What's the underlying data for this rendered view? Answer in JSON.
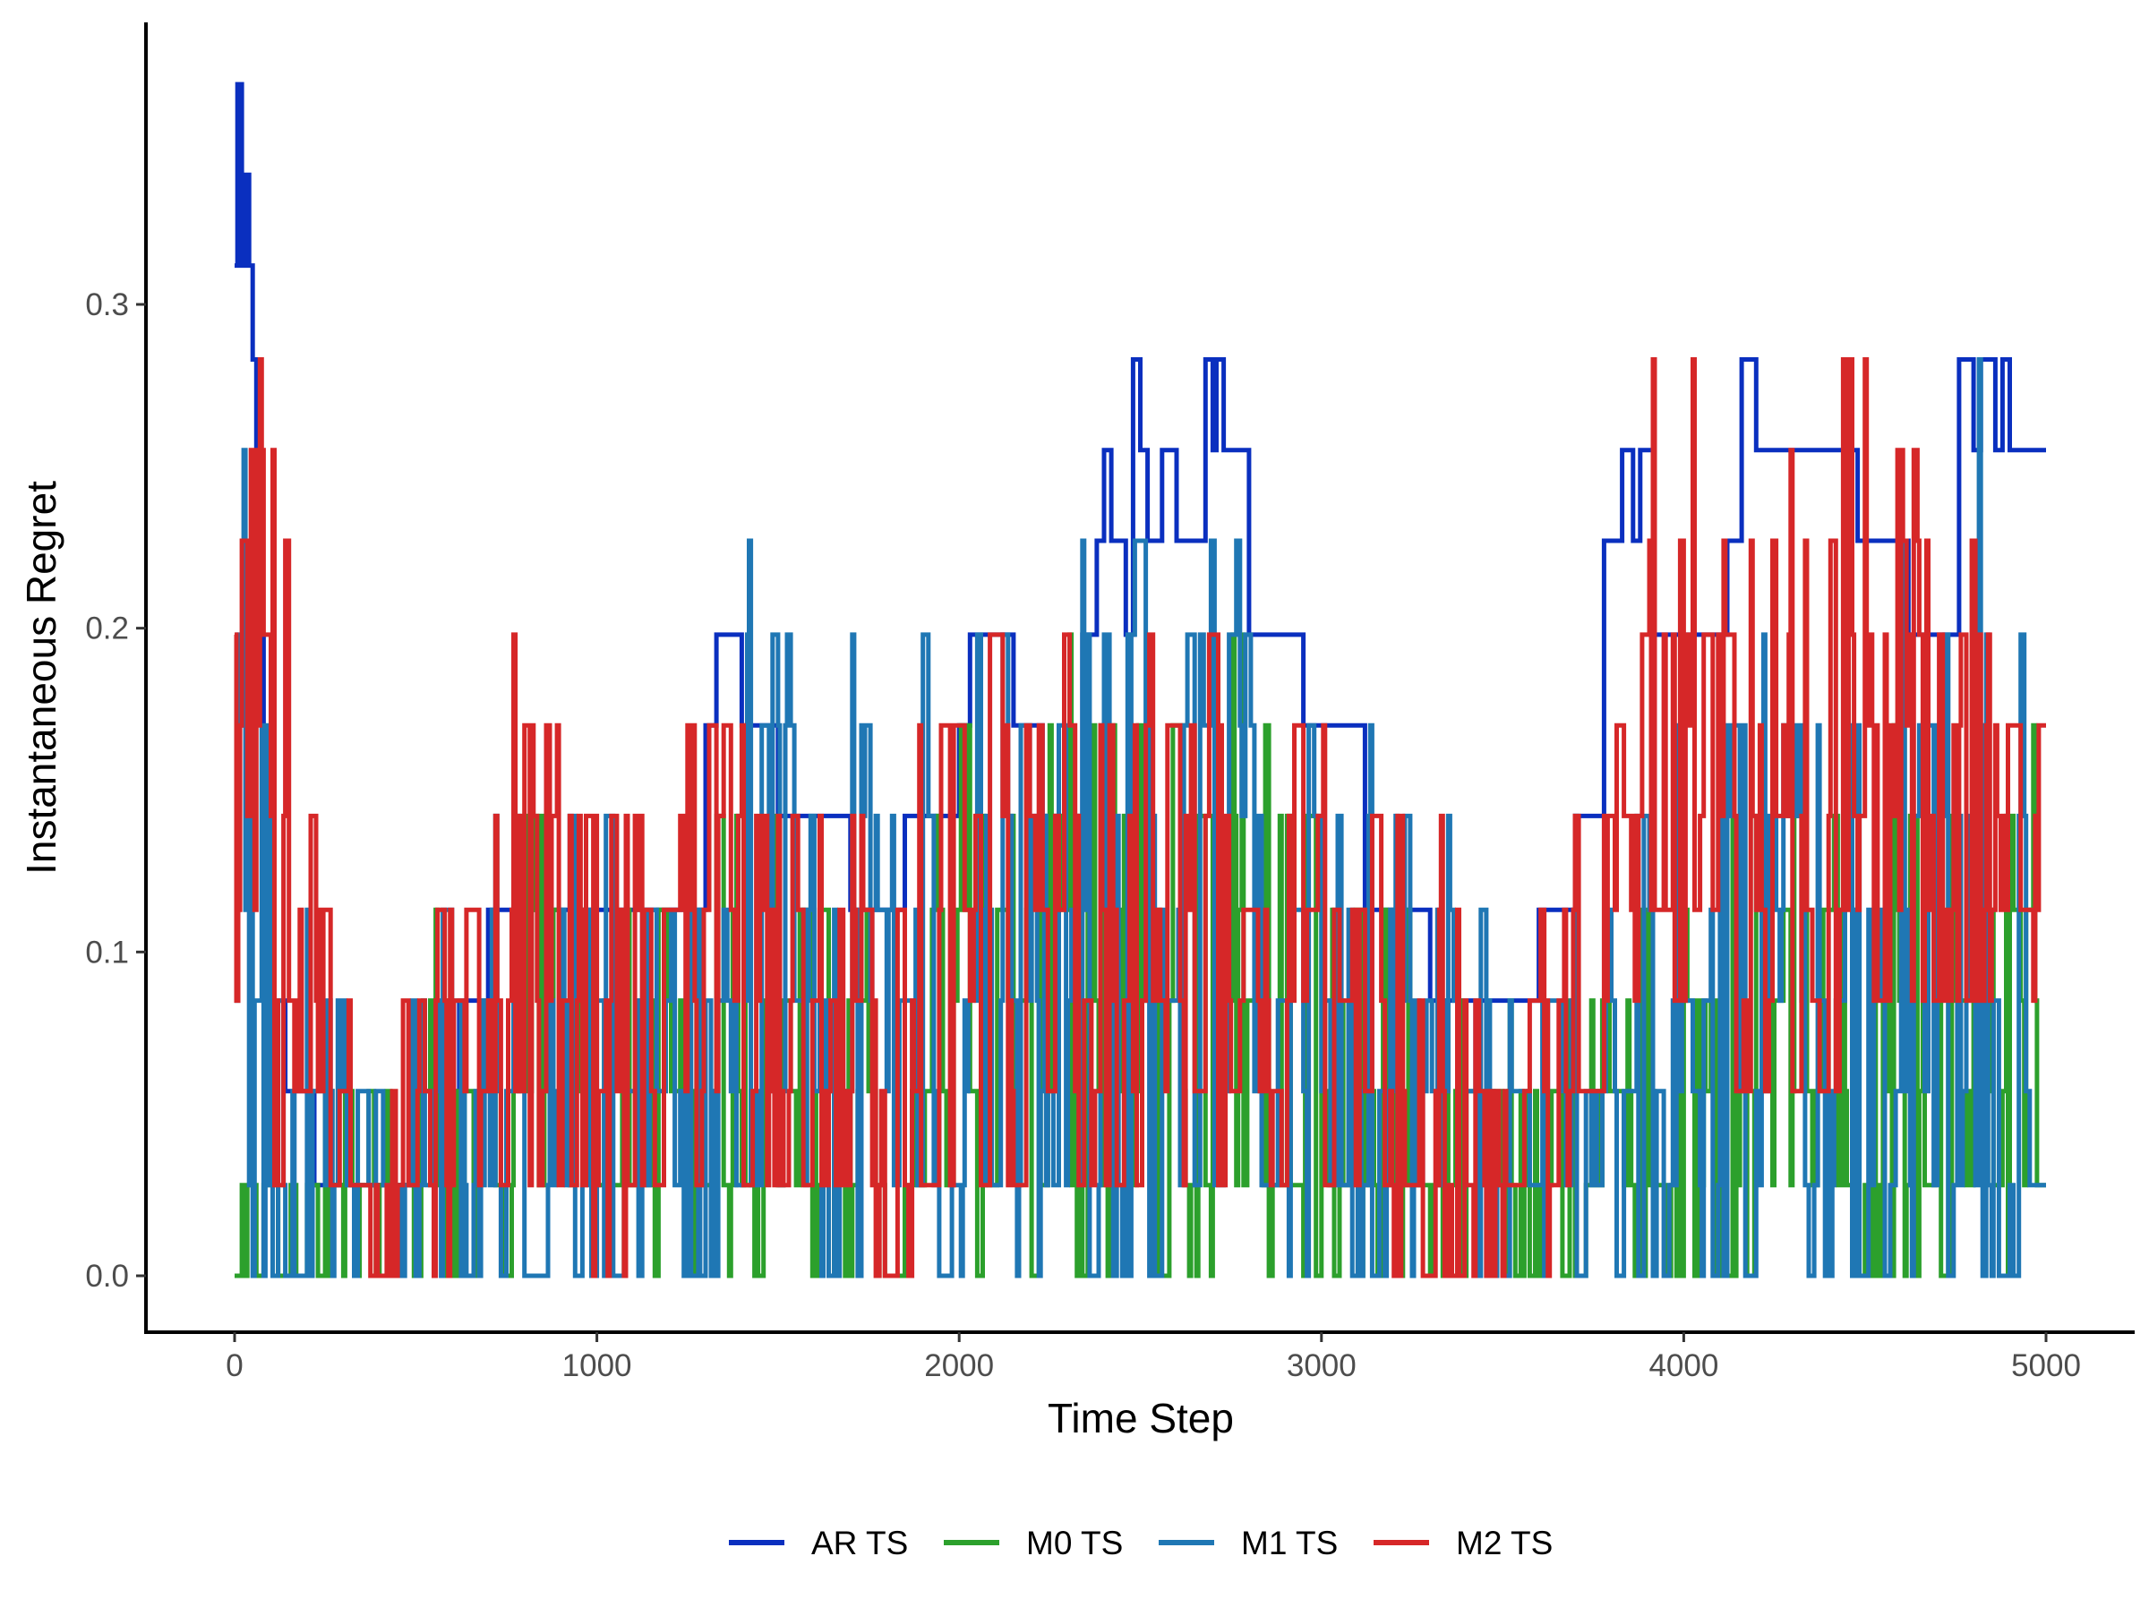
{
  "chart_data": {
    "type": "line",
    "title": "",
    "xlabel": "Time Step",
    "ylabel": "Instantaneous Regret",
    "xlim": [
      -250,
      5250
    ],
    "ylim": [
      -0.018,
      0.385
    ],
    "x_ticks": [
      {
        "value": 0,
        "label": "0"
      },
      {
        "value": 1000,
        "label": "1000"
      },
      {
        "value": 2000,
        "label": "2000"
      },
      {
        "value": 3000,
        "label": "3000"
      },
      {
        "value": 4000,
        "label": "4000"
      },
      {
        "value": 5000,
        "label": "5000"
      }
    ],
    "y_ticks": [
      {
        "value": 0.0,
        "label": "0.0"
      },
      {
        "value": 0.1,
        "label": "0.1"
      },
      {
        "value": 0.2,
        "label": "0.2"
      },
      {
        "value": 0.3,
        "label": "0.3"
      }
    ],
    "grid": false,
    "legend_position": "bottom",
    "levels": [
      0,
      0.028,
      0.057,
      0.085,
      0.113,
      0.142,
      0.17,
      0.198,
      0.227,
      0.255,
      0.283,
      0.312,
      0.34,
      0.368
    ],
    "series": [
      {
        "name": "AR TS",
        "color": "#0a2fbf",
        "style": "step",
        "points": [
          [
            0,
            0.312
          ],
          [
            8,
            0.368
          ],
          [
            20,
            0.312
          ],
          [
            30,
            0.34
          ],
          [
            40,
            0.312
          ],
          [
            50,
            0.283
          ],
          [
            60,
            0.255
          ],
          [
            70,
            0.198
          ],
          [
            80,
            0.142
          ],
          [
            90,
            0.113
          ],
          [
            110,
            0.085
          ],
          [
            140,
            0.057
          ],
          [
            180,
            0.057
          ],
          [
            220,
            0.028
          ],
          [
            300,
            0.028
          ],
          [
            400,
            0.028
          ],
          [
            500,
            0.057
          ],
          [
            620,
            0.085
          ],
          [
            700,
            0.113
          ],
          [
            900,
            0.113
          ],
          [
            1000,
            0.113
          ],
          [
            1200,
            0.113
          ],
          [
            1300,
            0.17
          ],
          [
            1330,
            0.198
          ],
          [
            1400,
            0.17
          ],
          [
            1500,
            0.142
          ],
          [
            1600,
            0.142
          ],
          [
            1700,
            0.113
          ],
          [
            1850,
            0.142
          ],
          [
            1900,
            0.142
          ],
          [
            2000,
            0.17
          ],
          [
            2030,
            0.198
          ],
          [
            2100,
            0.198
          ],
          [
            2150,
            0.17
          ],
          [
            2200,
            0.17
          ],
          [
            2230,
            0.142
          ],
          [
            2300,
            0.142
          ],
          [
            2340,
            0.198
          ],
          [
            2380,
            0.227
          ],
          [
            2400,
            0.255
          ],
          [
            2420,
            0.227
          ],
          [
            2460,
            0.198
          ],
          [
            2480,
            0.283
          ],
          [
            2500,
            0.255
          ],
          [
            2520,
            0.227
          ],
          [
            2560,
            0.255
          ],
          [
            2600,
            0.227
          ],
          [
            2680,
            0.283
          ],
          [
            2700,
            0.255
          ],
          [
            2710,
            0.283
          ],
          [
            2730,
            0.255
          ],
          [
            2800,
            0.198
          ],
          [
            2880,
            0.198
          ],
          [
            2950,
            0.17
          ],
          [
            3100,
            0.17
          ],
          [
            3120,
            0.113
          ],
          [
            3200,
            0.113
          ],
          [
            3300,
            0.085
          ],
          [
            3400,
            0.085
          ],
          [
            3500,
            0.085
          ],
          [
            3600,
            0.113
          ],
          [
            3700,
            0.142
          ],
          [
            3760,
            0.142
          ],
          [
            3780,
            0.227
          ],
          [
            3830,
            0.255
          ],
          [
            3860,
            0.227
          ],
          [
            3880,
            0.255
          ],
          [
            3920,
            0.198
          ],
          [
            4000,
            0.198
          ],
          [
            4080,
            0.198
          ],
          [
            4120,
            0.227
          ],
          [
            4160,
            0.283
          ],
          [
            4200,
            0.255
          ],
          [
            4300,
            0.255
          ],
          [
            4400,
            0.255
          ],
          [
            4480,
            0.227
          ],
          [
            4560,
            0.227
          ],
          [
            4620,
            0.198
          ],
          [
            4700,
            0.198
          ],
          [
            4760,
            0.283
          ],
          [
            4800,
            0.255
          ],
          [
            4820,
            0.283
          ],
          [
            4860,
            0.255
          ],
          [
            4880,
            0.283
          ],
          [
            4900,
            0.255
          ],
          [
            5000,
            0.255
          ]
        ]
      },
      {
        "name": "M0 TS",
        "color": "#2ca02c",
        "style": "noisy",
        "seed": 11,
        "points": [
          [
            0,
            0.0
          ],
          [
            200,
            0.0
          ],
          [
            400,
            0.0
          ],
          [
            600,
            0.0
          ],
          [
            800,
            0.0
          ],
          [
            1000,
            0.0
          ],
          [
            1200,
            0.0
          ],
          [
            1400,
            0.0
          ],
          [
            1600,
            0.0
          ],
          [
            1800,
            0.0
          ],
          [
            2000,
            0.0
          ],
          [
            2200,
            0.0
          ],
          [
            2400,
            0.0
          ],
          [
            2600,
            0.0
          ],
          [
            2800,
            0.0
          ],
          [
            3000,
            0.0
          ],
          [
            3200,
            0.0
          ],
          [
            3400,
            0.0
          ],
          [
            3600,
            0.0
          ],
          [
            3800,
            0.0
          ],
          [
            4000,
            0.0
          ],
          [
            4200,
            0.0
          ],
          [
            4400,
            0.0
          ],
          [
            4600,
            0.0
          ],
          [
            4800,
            0.0
          ],
          [
            5000,
            0.0
          ]
        ],
        "bounds": [
          [
            0,
            0.0,
            0.057
          ],
          [
            200,
            0.0,
            0.085
          ],
          [
            400,
            0.0,
            0.057
          ],
          [
            600,
            0.0,
            0.113
          ],
          [
            800,
            0.0,
            0.142
          ],
          [
            1000,
            0.0,
            0.113
          ],
          [
            1200,
            0.0,
            0.142
          ],
          [
            1400,
            0.0,
            0.17
          ],
          [
            1600,
            0.0,
            0.113
          ],
          [
            1800,
            0.0,
            0.113
          ],
          [
            2000,
            0.0,
            0.17
          ],
          [
            2200,
            0.0,
            0.17
          ],
          [
            2400,
            0.0,
            0.198
          ],
          [
            2600,
            0.0,
            0.198
          ],
          [
            2800,
            0.0,
            0.198
          ],
          [
            3000,
            0.0,
            0.142
          ],
          [
            3200,
            0.0,
            0.113
          ],
          [
            3400,
            0.0,
            0.085
          ],
          [
            3600,
            0.0,
            0.085
          ],
          [
            3800,
            0.0,
            0.113
          ],
          [
            4000,
            0.0,
            0.142
          ],
          [
            4200,
            0.0,
            0.142
          ],
          [
            4400,
            0.0,
            0.17
          ],
          [
            4600,
            0.0,
            0.17
          ],
          [
            4800,
            0.0,
            0.198
          ],
          [
            5000,
            0.0,
            0.198
          ]
        ]
      },
      {
        "name": "M1 TS",
        "color": "#1f77b4",
        "style": "noisy",
        "seed": 23,
        "points": [
          [
            0,
            0.0
          ],
          [
            200,
            0.0
          ],
          [
            400,
            0.0
          ],
          [
            600,
            0.0
          ],
          [
            800,
            0.0
          ],
          [
            1000,
            0.0
          ],
          [
            1200,
            0.0
          ],
          [
            1400,
            0.0
          ],
          [
            1600,
            0.0
          ],
          [
            1800,
            0.0
          ],
          [
            2000,
            0.0
          ],
          [
            2200,
            0.0
          ],
          [
            2400,
            0.0
          ],
          [
            2600,
            0.0
          ],
          [
            2800,
            0.0
          ],
          [
            3000,
            0.0
          ],
          [
            3200,
            0.0
          ],
          [
            3400,
            0.0
          ],
          [
            3600,
            0.0
          ],
          [
            3800,
            0.0
          ],
          [
            4000,
            0.0
          ],
          [
            4200,
            0.0
          ],
          [
            4400,
            0.0
          ],
          [
            4600,
            0.0
          ],
          [
            4800,
            0.0
          ],
          [
            5000,
            0.0
          ]
        ],
        "bounds": [
          [
            0,
            0.0,
            0.312
          ],
          [
            100,
            0.0,
            0.198
          ],
          [
            200,
            0.0,
            0.113
          ],
          [
            400,
            0.0,
            0.057
          ],
          [
            600,
            0.0,
            0.113
          ],
          [
            800,
            0.0,
            0.17
          ],
          [
            1000,
            0.0,
            0.142
          ],
          [
            1200,
            0.0,
            0.17
          ],
          [
            1400,
            0.0,
            0.227
          ],
          [
            1600,
            0.0,
            0.17
          ],
          [
            1800,
            0.0,
            0.198
          ],
          [
            1870,
            0.0,
            0.255
          ],
          [
            2000,
            0.0,
            0.227
          ],
          [
            2200,
            0.0,
            0.198
          ],
          [
            2400,
            0.0,
            0.227
          ],
          [
            2500,
            0.0,
            0.255
          ],
          [
            2600,
            0.0,
            0.227
          ],
          [
            2800,
            0.0,
            0.227
          ],
          [
            3000,
            0.0,
            0.198
          ],
          [
            3200,
            0.0,
            0.142
          ],
          [
            3400,
            0.0,
            0.142
          ],
          [
            3600,
            0.0,
            0.142
          ],
          [
            3800,
            0.0,
            0.142
          ],
          [
            4000,
            0.0,
            0.17
          ],
          [
            4200,
            0.0,
            0.198
          ],
          [
            4400,
            0.0,
            0.227
          ],
          [
            4600,
            0.0,
            0.227
          ],
          [
            4800,
            0.0,
            0.283
          ],
          [
            5000,
            0.0,
            0.227
          ]
        ]
      },
      {
        "name": "M2 TS",
        "color": "#d62728",
        "style": "noisy",
        "seed": 37,
        "points": [
          [
            0,
            0.0
          ],
          [
            200,
            0.0
          ],
          [
            400,
            0.0
          ],
          [
            600,
            0.0
          ],
          [
            800,
            0.0
          ],
          [
            1000,
            0.0
          ],
          [
            1200,
            0.0
          ],
          [
            1400,
            0.0
          ],
          [
            1600,
            0.0
          ],
          [
            1800,
            0.0
          ],
          [
            2000,
            0.0
          ],
          [
            2200,
            0.0
          ],
          [
            2400,
            0.0
          ],
          [
            2600,
            0.0
          ],
          [
            2800,
            0.0
          ],
          [
            3000,
            0.0
          ],
          [
            3200,
            0.0
          ],
          [
            3400,
            0.0
          ],
          [
            3600,
            0.0
          ],
          [
            3800,
            0.0
          ],
          [
            4000,
            0.0
          ],
          [
            4200,
            0.0
          ],
          [
            4400,
            0.0
          ],
          [
            4600,
            0.0
          ],
          [
            4800,
            0.0
          ],
          [
            5000,
            0.0
          ]
        ],
        "bounds": [
          [
            0,
            0.085,
            0.312
          ],
          [
            100,
            0.028,
            0.255
          ],
          [
            200,
            0.028,
            0.17
          ],
          [
            400,
            0.0,
            0.057
          ],
          [
            600,
            0.0,
            0.142
          ],
          [
            800,
            0.028,
            0.227
          ],
          [
            1000,
            0.0,
            0.142
          ],
          [
            1200,
            0.028,
            0.17
          ],
          [
            1400,
            0.028,
            0.198
          ],
          [
            1600,
            0.028,
            0.142
          ],
          [
            1800,
            0.0,
            0.142
          ],
          [
            2000,
            0.028,
            0.227
          ],
          [
            2200,
            0.028,
            0.198
          ],
          [
            2400,
            0.028,
            0.198
          ],
          [
            2600,
            0.028,
            0.198
          ],
          [
            2800,
            0.028,
            0.198
          ],
          [
            3000,
            0.028,
            0.17
          ],
          [
            3200,
            0.0,
            0.142
          ],
          [
            3400,
            0.0,
            0.142
          ],
          [
            3600,
            0.0,
            0.113
          ],
          [
            3800,
            0.057,
            0.198
          ],
          [
            3900,
            0.085,
            0.283
          ],
          [
            4000,
            0.085,
            0.283
          ],
          [
            4200,
            0.057,
            0.227
          ],
          [
            4400,
            0.057,
            0.312
          ],
          [
            4600,
            0.085,
            0.312
          ],
          [
            4800,
            0.085,
            0.255
          ],
          [
            5000,
            0.085,
            0.17
          ]
        ]
      }
    ]
  }
}
